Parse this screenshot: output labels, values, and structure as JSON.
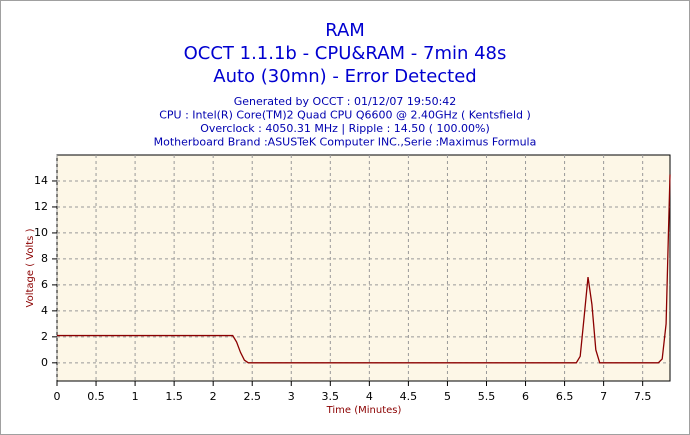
{
  "chart_data": {
    "type": "line",
    "title_lines": [
      "RAM",
      "OCCT 1.1.1b - CPU&RAM - 7min 48s",
      "Auto (30mn) - Error Detected"
    ],
    "info_lines": [
      "Generated by OCCT : 01/12/07 19:50:42",
      "CPU : Intel(R) Core(TM)2 Quad CPU Q6600 @ 2.40GHz ( Kentsfield )",
      "Overclock : 4050.31 MHz | Ripple : 14.50 ( 100.00%)",
      "Motherboard Brand :ASUSTeK Computer INC.,Serie :Maximus Formula"
    ],
    "x_label": "Time (Minutes)",
    "y_label": "Voltage ( Volts )",
    "x": [
      0,
      2.25,
      2.3,
      2.35,
      2.4,
      2.45,
      6.65,
      6.7,
      6.75,
      6.8,
      6.85,
      6.9,
      6.95,
      7.7,
      7.75,
      7.8,
      7.83,
      7.85
    ],
    "values": [
      2.1,
      2.1,
      1.6,
      0.8,
      0.2,
      0,
      0,
      0.5,
      3.5,
      6.6,
      4.5,
      1,
      0,
      0,
      0.3,
      3,
      10,
      14.5
    ],
    "color": "#8b0000",
    "xlim": [
      0,
      7.85
    ],
    "xticks": [
      0,
      0.5,
      1,
      1.5,
      2,
      2.5,
      3,
      3.5,
      4,
      4.5,
      5,
      5.5,
      6,
      6.5,
      7,
      7.5
    ],
    "ylim": [
      -1.4,
      16
    ],
    "yticks": [
      0,
      2,
      4,
      6,
      8,
      10,
      12,
      14
    ],
    "grid": true
  }
}
